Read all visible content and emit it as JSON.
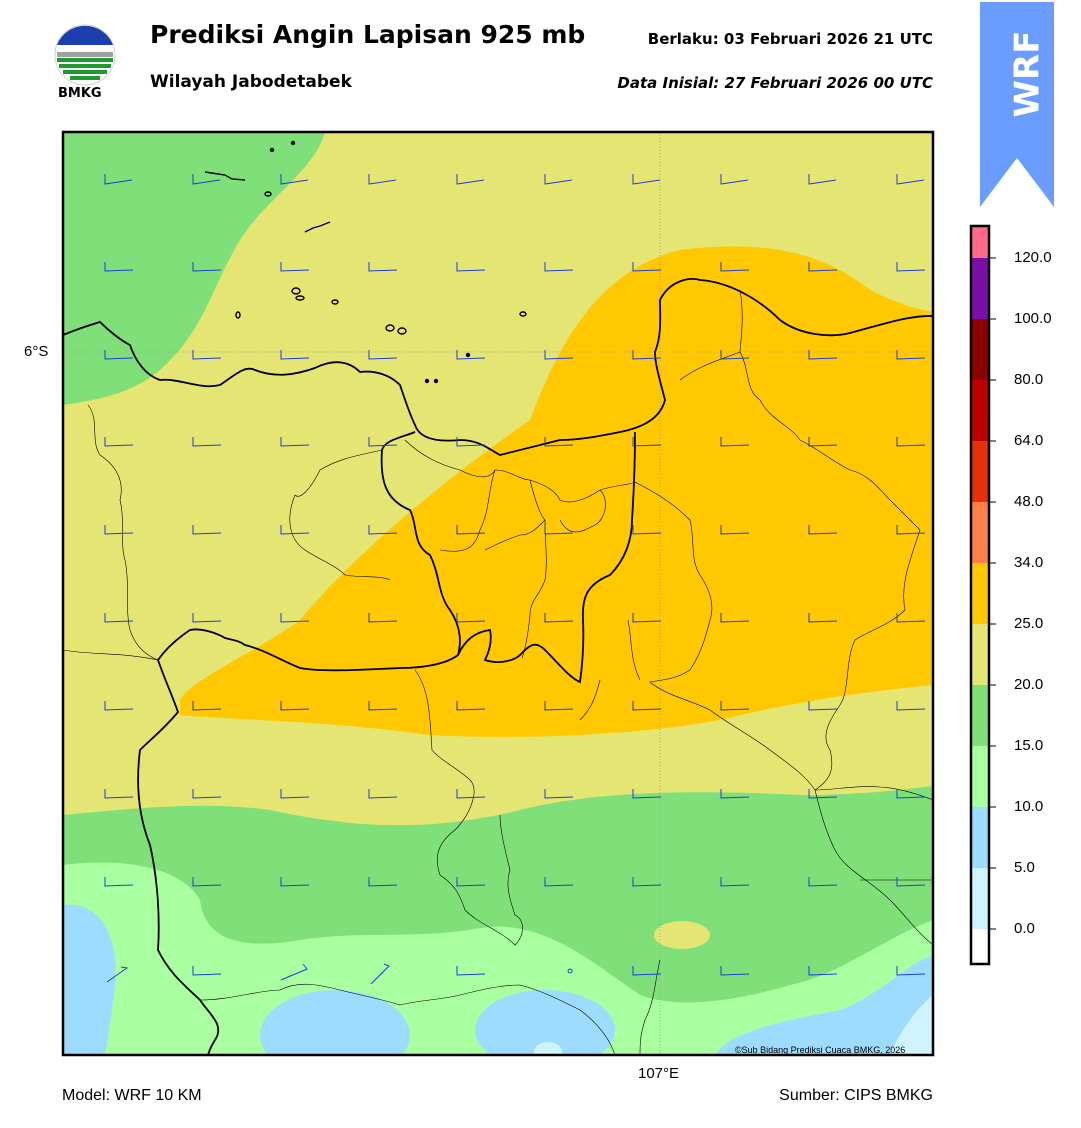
{
  "header": {
    "title": "Prediksi Angin Lapisan 925 mb",
    "subtitle": "Wilayah Jabodetabek",
    "valid_label": "Berlaku:  03 Februari 2026 21 UTC",
    "init_label": "Data Inisial:  27 Februari 2026 00 UTC",
    "logo_text": "BMKG",
    "badge_text": "WRF"
  },
  "map": {
    "lat_label": "6°S",
    "lon_label": "107°E",
    "copyright": "©Sub Bidang Prediksi Cuaca BMKG, 2026",
    "fill_colors": {
      "dark_green": "#7fdf79",
      "khaki": "#e5e573",
      "orange": "#ffc800",
      "light_green": "#aaffa0",
      "light_blue": "#9ddcff",
      "pale_blue": "#d0f4ff"
    }
  },
  "colorbar": {
    "ticks": [
      "120.0",
      "100.0",
      "80.0",
      "64.0",
      "48.0",
      "34.0",
      "25.0",
      "20.0",
      "15.0",
      "10.0",
      "5.0",
      "0.0"
    ],
    "colors": [
      "#ff6a88",
      "#7a0fa8",
      "#8b0000",
      "#c00000",
      "#e8300a",
      "#ff7f4a",
      "#ffc800",
      "#e5e573",
      "#7fdf79",
      "#aaffa0",
      "#9ddcff",
      "#d0f4ff",
      "#ffffff"
    ]
  },
  "footer": {
    "model": "Model: WRF 10 KM",
    "source": "Sumber: CIPS BMKG"
  }
}
